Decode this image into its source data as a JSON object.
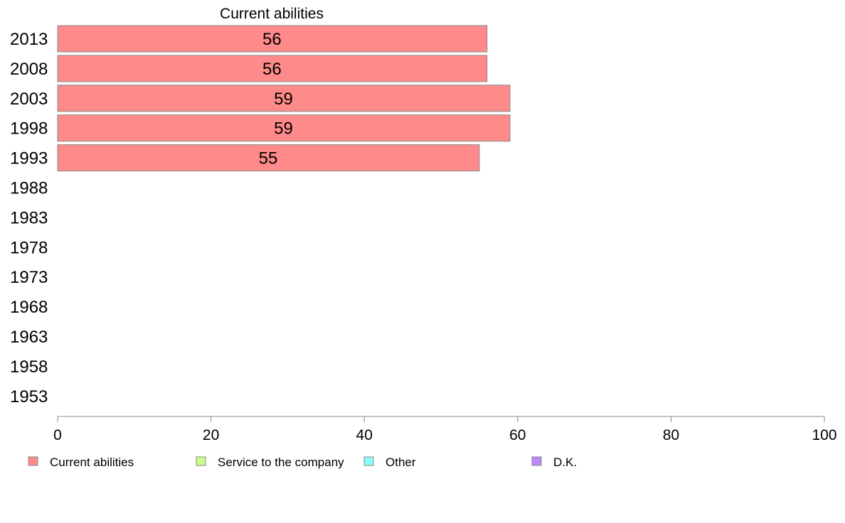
{
  "chart_data": {
    "type": "bar",
    "orientation": "horizontal",
    "categories": [
      "2013",
      "2008",
      "2003",
      "1998",
      "1993",
      "1988",
      "1983",
      "1978",
      "1973",
      "1968",
      "1963",
      "1958",
      "1953"
    ],
    "series_title": "Current abilities",
    "series": [
      {
        "name": "Current abilities",
        "color": "#ff8a8a",
        "values": [
          56,
          56,
          59,
          59,
          55,
          null,
          null,
          null,
          null,
          null,
          null,
          null,
          null
        ]
      }
    ],
    "data_labels": [
      "56",
      "56",
      "59",
      "59",
      "55"
    ],
    "xlim": [
      0,
      100
    ],
    "xticks": [
      0,
      20,
      40,
      60,
      80,
      100
    ],
    "grid": false,
    "legend_position": "bottom",
    "legend": [
      {
        "label": "Current abilities",
        "color": "#ff8a8a"
      },
      {
        "label": "Service to the company",
        "color": "#ccff88"
      },
      {
        "label": "Other",
        "color": "#88ffff"
      },
      {
        "label": "D.K.",
        "color": "#bb88ff"
      }
    ]
  }
}
